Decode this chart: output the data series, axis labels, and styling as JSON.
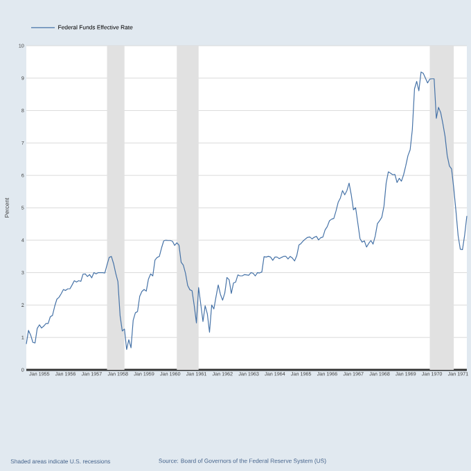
{
  "chart_data": {
    "type": "line",
    "ylabel": "Percent",
    "annotations": [
      "Shaded areas indicate U.S. recessions",
      "Source: Board of Governors of the Federal Reserve System (US)"
    ],
    "x": [
      "1954-07",
      "1954-08",
      "1954-09",
      "1954-10",
      "1954-11",
      "1954-12",
      "1955-01",
      "1955-02",
      "1955-03",
      "1955-04",
      "1955-05",
      "1955-06",
      "1955-07",
      "1955-08",
      "1955-09",
      "1955-10",
      "1955-11",
      "1955-12",
      "1956-01",
      "1956-02",
      "1956-03",
      "1956-04",
      "1956-05",
      "1956-06",
      "1956-07",
      "1956-08",
      "1956-09",
      "1956-10",
      "1956-11",
      "1956-12",
      "1957-01",
      "1957-02",
      "1957-03",
      "1957-04",
      "1957-05",
      "1957-06",
      "1957-07",
      "1957-08",
      "1957-09",
      "1957-10",
      "1957-11",
      "1957-12",
      "1958-01",
      "1958-02",
      "1958-03",
      "1958-04",
      "1958-05",
      "1958-06",
      "1958-07",
      "1958-08",
      "1958-09",
      "1958-10",
      "1958-11",
      "1958-12",
      "1959-01",
      "1959-02",
      "1959-03",
      "1959-04",
      "1959-05",
      "1959-06",
      "1959-07",
      "1959-08",
      "1959-09",
      "1959-10",
      "1959-11",
      "1959-12",
      "1960-01",
      "1960-02",
      "1960-03",
      "1960-04",
      "1960-05",
      "1960-06",
      "1960-07",
      "1960-08",
      "1960-09",
      "1960-10",
      "1960-11",
      "1960-12",
      "1961-01",
      "1961-02",
      "1961-03",
      "1961-04",
      "1961-05",
      "1961-06",
      "1961-07",
      "1961-08",
      "1961-09",
      "1961-10",
      "1961-11",
      "1961-12",
      "1962-01",
      "1962-02",
      "1962-03",
      "1962-04",
      "1962-05",
      "1962-06",
      "1962-07",
      "1962-08",
      "1962-09",
      "1962-10",
      "1962-11",
      "1962-12",
      "1963-01",
      "1963-02",
      "1963-03",
      "1963-04",
      "1963-05",
      "1963-06",
      "1963-07",
      "1963-08",
      "1963-09",
      "1963-10",
      "1963-11",
      "1963-12",
      "1964-01",
      "1964-02",
      "1964-03",
      "1964-04",
      "1964-05",
      "1964-06",
      "1964-07",
      "1964-08",
      "1964-09",
      "1964-10",
      "1964-11",
      "1964-12",
      "1965-01",
      "1965-02",
      "1965-03",
      "1965-04",
      "1965-05",
      "1965-06",
      "1965-07",
      "1965-08",
      "1965-09",
      "1965-10",
      "1965-11",
      "1965-12",
      "1966-01",
      "1966-02",
      "1966-03",
      "1966-04",
      "1966-05",
      "1966-06",
      "1966-07",
      "1966-08",
      "1966-09",
      "1966-10",
      "1966-11",
      "1966-12",
      "1967-01",
      "1967-02",
      "1967-03",
      "1967-04",
      "1967-05",
      "1967-06",
      "1967-07",
      "1967-08",
      "1967-09",
      "1967-10",
      "1967-11",
      "1967-12",
      "1968-01",
      "1968-02",
      "1968-03",
      "1968-04",
      "1968-05",
      "1968-06",
      "1968-07",
      "1968-08",
      "1968-09",
      "1968-10",
      "1968-11",
      "1968-12",
      "1969-01",
      "1969-02",
      "1969-03",
      "1969-04",
      "1969-05",
      "1969-06",
      "1969-07",
      "1969-08",
      "1969-09",
      "1969-10",
      "1969-11",
      "1969-12",
      "1970-01",
      "1970-02",
      "1970-03",
      "1970-04",
      "1970-05",
      "1970-06",
      "1970-07",
      "1970-08",
      "1970-09",
      "1970-10",
      "1970-11",
      "1970-12",
      "1971-01",
      "1971-02",
      "1971-03",
      "1971-04",
      "1971-05"
    ],
    "series": [
      {
        "name": "Federal Funds Effective Rate",
        "color": "#4572a7",
        "values": [
          0.8,
          1.22,
          1.07,
          0.85,
          0.83,
          1.28,
          1.39,
          1.29,
          1.35,
          1.43,
          1.43,
          1.64,
          1.68,
          1.96,
          2.18,
          2.24,
          2.35,
          2.48,
          2.45,
          2.5,
          2.5,
          2.62,
          2.75,
          2.71,
          2.75,
          2.73,
          2.95,
          2.96,
          2.88,
          2.94,
          2.84,
          3.0,
          2.96,
          3.0,
          3.0,
          3.0,
          2.99,
          3.24,
          3.47,
          3.5,
          3.28,
          2.98,
          2.72,
          1.67,
          1.2,
          1.26,
          0.63,
          0.93,
          0.68,
          1.53,
          1.76,
          1.8,
          2.27,
          2.42,
          2.48,
          2.43,
          2.8,
          2.96,
          2.9,
          3.39,
          3.47,
          3.5,
          3.76,
          3.98,
          4.0,
          3.99,
          3.99,
          3.97,
          3.84,
          3.92,
          3.85,
          3.32,
          3.23,
          2.98,
          2.6,
          2.47,
          2.44,
          1.98,
          1.45,
          2.54,
          2.02,
          1.49,
          1.98,
          1.73,
          1.16,
          2.0,
          1.88,
          2.26,
          2.62,
          2.33,
          2.15,
          2.37,
          2.85,
          2.78,
          2.36,
          2.68,
          2.71,
          2.93,
          2.9,
          2.9,
          2.94,
          2.93,
          2.92,
          3.0,
          2.98,
          2.9,
          3.0,
          2.99,
          3.02,
          3.49,
          3.48,
          3.5,
          3.48,
          3.38,
          3.48,
          3.48,
          3.43,
          3.47,
          3.5,
          3.5,
          3.42,
          3.5,
          3.45,
          3.36,
          3.52,
          3.85,
          3.9,
          3.98,
          4.04,
          4.09,
          4.1,
          4.04,
          4.09,
          4.12,
          4.01,
          4.08,
          4.1,
          4.32,
          4.42,
          4.6,
          4.65,
          4.67,
          4.9,
          5.17,
          5.3,
          5.53,
          5.4,
          5.53,
          5.76,
          5.4,
          4.94,
          5.0,
          4.53,
          4.05,
          3.94,
          3.98,
          3.79,
          3.9,
          3.99,
          3.88,
          4.13,
          4.51,
          4.6,
          4.71,
          5.05,
          5.76,
          6.11,
          6.07,
          6.02,
          6.03,
          5.78,
          5.91,
          5.82,
          6.02,
          6.3,
          6.61,
          6.79,
          7.41,
          8.67,
          8.9,
          8.61,
          9.19,
          9.15,
          9.0,
          8.85,
          8.97,
          8.98,
          8.98,
          7.76,
          8.1,
          7.94,
          7.6,
          7.21,
          6.61,
          6.29,
          6.2,
          5.6,
          4.9,
          4.14,
          3.72,
          3.71,
          4.16,
          4.75
        ]
      }
    ],
    "xlim": [
      "1954-07",
      "1971-05"
    ],
    "xticks": [
      {
        "value": "1955-01",
        "label": "Jan 1955"
      },
      {
        "value": "1956-01",
        "label": "Jan 1956"
      },
      {
        "value": "1957-01",
        "label": "Jan 1957"
      },
      {
        "value": "1958-01",
        "label": "Jan 1958"
      },
      {
        "value": "1959-01",
        "label": "Jan 1959"
      },
      {
        "value": "1960-01",
        "label": "Jan 1960"
      },
      {
        "value": "1961-01",
        "label": "Jan 1961"
      },
      {
        "value": "1962-01",
        "label": "Jan 1962"
      },
      {
        "value": "1963-01",
        "label": "Jan 1963"
      },
      {
        "value": "1964-01",
        "label": "Jan 1964"
      },
      {
        "value": "1965-01",
        "label": "Jan 1965"
      },
      {
        "value": "1966-01",
        "label": "Jan 1966"
      },
      {
        "value": "1967-01",
        "label": "Jan 1967"
      },
      {
        "value": "1968-01",
        "label": "Jan 1968"
      },
      {
        "value": "1969-01",
        "label": "Jan 1969"
      },
      {
        "value": "1970-01",
        "label": "Jan 1970"
      },
      {
        "value": "1971-01",
        "label": "Jan 1971"
      }
    ],
    "ylim": [
      0,
      10
    ],
    "yticks": [
      0,
      1,
      2,
      3,
      4,
      5,
      6,
      7,
      8,
      9,
      10
    ],
    "bands": [
      {
        "axis": "x",
        "from": "1957-08",
        "to": "1958-04",
        "color": "#e1e1e1"
      },
      {
        "axis": "x",
        "from": "1960-04",
        "to": "1961-02",
        "color": "#e1e1e1"
      },
      {
        "axis": "x",
        "from": "1969-12",
        "to": "1970-11",
        "color": "#e1e1e1"
      }
    ],
    "grid": "y",
    "legend": "top left",
    "line_style": "solid",
    "marker": "none"
  }
}
